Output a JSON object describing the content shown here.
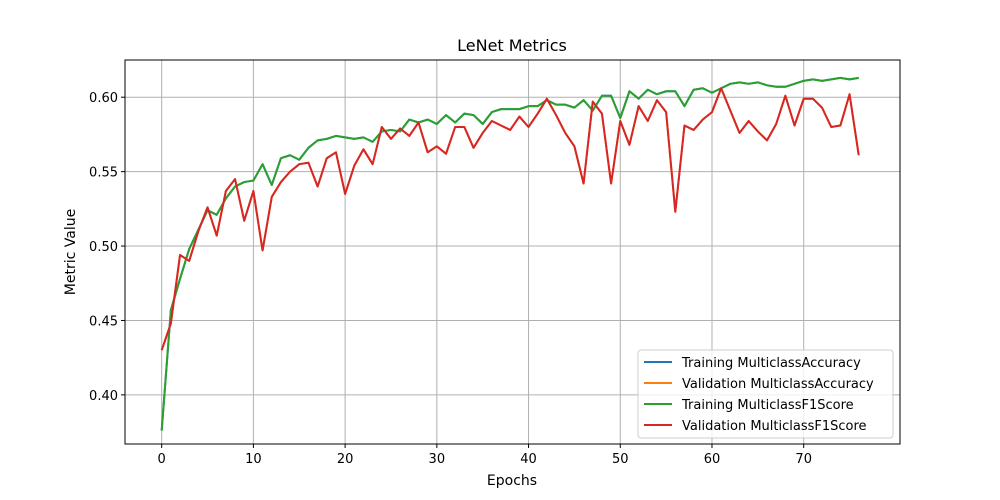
{
  "chart_data": {
    "type": "line",
    "title": "LeNet Metrics",
    "xlabel": "Epochs",
    "ylabel": "Metric Value",
    "xlim": [
      -4,
      80.5
    ],
    "ylim": [
      0.367,
      0.625
    ],
    "xticks": [
      0,
      10,
      20,
      30,
      40,
      50,
      60,
      70
    ],
    "yticks": [
      0.4,
      0.45,
      0.5,
      0.55,
      0.6
    ],
    "ytick_labels": [
      "0.40",
      "0.45",
      "0.50",
      "0.55",
      "0.60"
    ],
    "grid": true,
    "legend_position": "lower-right",
    "x": [
      0,
      1,
      2,
      3,
      4,
      5,
      6,
      7,
      8,
      9,
      10,
      11,
      12,
      13,
      14,
      15,
      16,
      17,
      18,
      19,
      20,
      21,
      22,
      23,
      24,
      25,
      26,
      27,
      28,
      29,
      30,
      31,
      32,
      33,
      34,
      35,
      36,
      37,
      38,
      39,
      40,
      41,
      42,
      43,
      44,
      45,
      46,
      47,
      48,
      49,
      50,
      51,
      52,
      53,
      54,
      55,
      56,
      57,
      58,
      59,
      60,
      61,
      62,
      63,
      64,
      65,
      66,
      67,
      68,
      69,
      70,
      71,
      72,
      73,
      74,
      75,
      76
    ],
    "series": [
      {
        "name": "Training MulticlassAccuracy",
        "color": "#1f77b4",
        "values": [
          0.376,
          0.457,
          0.478,
          0.498,
          0.511,
          0.524,
          0.521,
          0.532,
          0.54,
          0.543,
          0.544,
          0.555,
          0.541,
          0.559,
          0.561,
          0.558,
          0.566,
          0.571,
          0.572,
          0.574,
          0.573,
          0.572,
          0.573,
          0.57,
          0.577,
          0.578,
          0.577,
          0.585,
          0.583,
          0.585,
          0.582,
          0.588,
          0.583,
          0.589,
          0.588,
          0.582,
          0.59,
          0.592,
          0.592,
          0.592,
          0.594,
          0.594,
          0.598,
          0.595,
          0.595,
          0.593,
          0.598,
          0.591,
          0.601,
          0.601,
          0.586,
          0.604,
          0.599,
          0.605,
          0.602,
          0.604,
          0.604,
          0.594,
          0.605,
          0.606,
          0.603,
          0.606,
          0.609,
          0.61,
          0.609,
          0.61,
          0.608,
          0.607,
          0.607,
          0.609,
          0.611,
          0.612,
          0.611,
          0.612,
          0.613,
          0.612,
          0.613
        ]
      },
      {
        "name": "Validation MulticlassAccuracy",
        "color": "#ff7f0e",
        "values": [
          0.43,
          0.448,
          0.494,
          0.49,
          0.51,
          0.526,
          0.507,
          0.537,
          0.545,
          0.517,
          0.537,
          0.497,
          0.533,
          0.543,
          0.55,
          0.555,
          0.556,
          0.54,
          0.559,
          0.563,
          0.535,
          0.554,
          0.565,
          0.555,
          0.58,
          0.572,
          0.579,
          0.574,
          0.583,
          0.563,
          0.567,
          0.562,
          0.58,
          0.58,
          0.566,
          0.576,
          0.584,
          0.581,
          0.578,
          0.587,
          0.58,
          0.589,
          0.599,
          0.588,
          0.576,
          0.567,
          0.542,
          0.597,
          0.589,
          0.542,
          0.584,
          0.568,
          0.594,
          0.584,
          0.598,
          0.59,
          0.523,
          0.581,
          0.578,
          0.585,
          0.59,
          0.606,
          0.591,
          0.576,
          0.584,
          0.577,
          0.571,
          0.582,
          0.601,
          0.581,
          0.599,
          0.599,
          0.593,
          0.58,
          0.581,
          0.602,
          0.561
        ]
      },
      {
        "name": "Training MulticlassF1Score",
        "color": "#2ca02c",
        "values": [
          0.376,
          0.457,
          0.478,
          0.498,
          0.511,
          0.524,
          0.521,
          0.532,
          0.54,
          0.543,
          0.544,
          0.555,
          0.541,
          0.559,
          0.561,
          0.558,
          0.566,
          0.571,
          0.572,
          0.574,
          0.573,
          0.572,
          0.573,
          0.57,
          0.577,
          0.578,
          0.577,
          0.585,
          0.583,
          0.585,
          0.582,
          0.588,
          0.583,
          0.589,
          0.588,
          0.582,
          0.59,
          0.592,
          0.592,
          0.592,
          0.594,
          0.594,
          0.598,
          0.595,
          0.595,
          0.593,
          0.598,
          0.591,
          0.601,
          0.601,
          0.586,
          0.604,
          0.599,
          0.605,
          0.602,
          0.604,
          0.604,
          0.594,
          0.605,
          0.606,
          0.603,
          0.606,
          0.609,
          0.61,
          0.609,
          0.61,
          0.608,
          0.607,
          0.607,
          0.609,
          0.611,
          0.612,
          0.611,
          0.612,
          0.613,
          0.612,
          0.613
        ]
      },
      {
        "name": "Validation MulticlassF1Score",
        "color": "#d62728",
        "values": [
          0.43,
          0.448,
          0.494,
          0.49,
          0.51,
          0.526,
          0.507,
          0.537,
          0.545,
          0.517,
          0.537,
          0.497,
          0.533,
          0.543,
          0.55,
          0.555,
          0.556,
          0.54,
          0.559,
          0.563,
          0.535,
          0.554,
          0.565,
          0.555,
          0.58,
          0.572,
          0.579,
          0.574,
          0.583,
          0.563,
          0.567,
          0.562,
          0.58,
          0.58,
          0.566,
          0.576,
          0.584,
          0.581,
          0.578,
          0.587,
          0.58,
          0.589,
          0.599,
          0.588,
          0.576,
          0.567,
          0.542,
          0.597,
          0.589,
          0.542,
          0.584,
          0.568,
          0.594,
          0.584,
          0.598,
          0.59,
          0.523,
          0.581,
          0.578,
          0.585,
          0.59,
          0.606,
          0.591,
          0.576,
          0.584,
          0.577,
          0.571,
          0.582,
          0.601,
          0.581,
          0.599,
          0.599,
          0.593,
          0.58,
          0.581,
          0.602,
          0.561
        ]
      }
    ]
  }
}
